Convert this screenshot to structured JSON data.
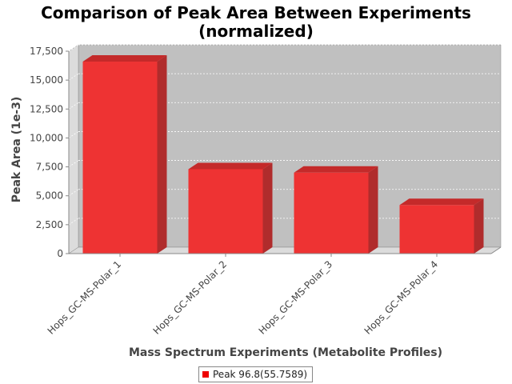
{
  "chart_data": {
    "type": "bar",
    "title_line1": "Comparison of Peak Area Between Experiments",
    "title_line2": "(normalized)",
    "xlabel": "Mass Spectrum Experiments (Metabolite Profiles)",
    "ylabel": "Peak Area (1e-3)",
    "ylim": [
      0,
      17500
    ],
    "yticks": [
      0,
      2500,
      5000,
      7500,
      10000,
      12500,
      15000,
      17500
    ],
    "ytick_labels": [
      "0",
      "2,500",
      "5,000",
      "7,500",
      "10,000",
      "12,500",
      "15,000",
      "17,500"
    ],
    "categories": [
      "Hops_GC-MS-Polar_1",
      "Hops_GC-MS-Polar_2",
      "Hops_GC-MS-Polar_3",
      "Hops_GC-MS-Polar_4"
    ],
    "series": [
      {
        "name": "Peak 96.8(55.7589)",
        "values": [
          16600,
          7300,
          7000,
          4200
        ],
        "color": "#ee0000"
      }
    ],
    "grid": true,
    "legend_position": "bottom"
  }
}
